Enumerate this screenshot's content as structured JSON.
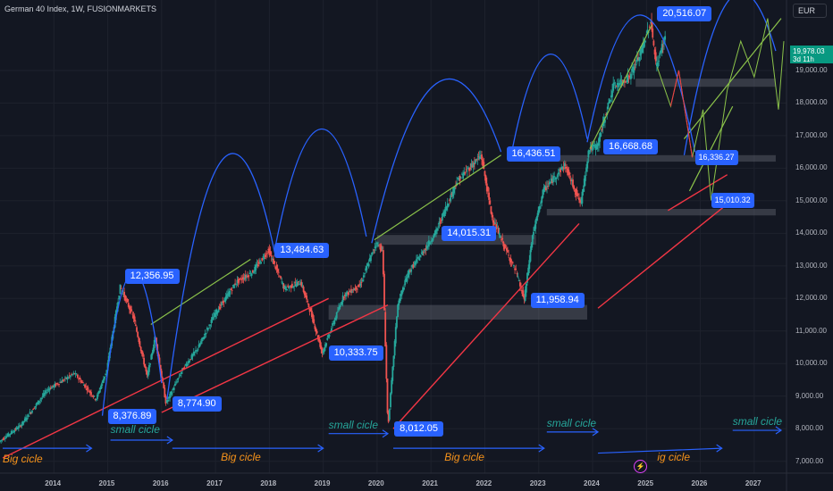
{
  "header": {
    "title": "German 40 Index, 1W, FUSIONMARKETS"
  },
  "currency_button": "EUR",
  "price_tag": {
    "price": "19,978.03",
    "countdown": "3d 11h",
    "color": "#089981"
  },
  "colors": {
    "background": "#131722",
    "up": "#26a69a",
    "down": "#ef5350",
    "arc": "#2962ff",
    "support_line": "#f23645",
    "trend_line": "#8bc34a",
    "zone": "#787b86"
  },
  "chart_data": {
    "type": "candlestick",
    "title": "German 40 Index, 1W, FUSIONMARKETS",
    "x_ticks": [
      "2014",
      "2015",
      "2016",
      "2017",
      "2018",
      "2019",
      "2020",
      "2021",
      "2022",
      "2023",
      "2024",
      "2025",
      "2026",
      "2027"
    ],
    "y_ticks": [
      "19,000.00",
      "18,000.00",
      "17,000.00",
      "16,000.00",
      "15,000.00",
      "14,000.00",
      "13,000.00",
      "12,000.00",
      "11,000.00",
      "10,000.00",
      "9,000.00",
      "8,000.00",
      "7,000.00"
    ],
    "ylim": [
      6800,
      21000
    ],
    "xlim": [
      2013.0,
      2027.6
    ],
    "price_path": [
      [
        2013.0,
        7600
      ],
      [
        2013.4,
        8100
      ],
      [
        2013.9,
        9200
      ],
      [
        2014.4,
        9700
      ],
      [
        2014.8,
        8900
      ],
      [
        2015.0,
        9800
      ],
      [
        2015.25,
        12356.95
      ],
      [
        2015.5,
        11400
      ],
      [
        2015.75,
        9600
      ],
      [
        2015.9,
        10800
      ],
      [
        2016.1,
        8774.9
      ],
      [
        2016.4,
        9800
      ],
      [
        2016.7,
        10500
      ],
      [
        2017.0,
        11500
      ],
      [
        2017.4,
        12500
      ],
      [
        2017.7,
        12800
      ],
      [
        2018.0,
        13484.63
      ],
      [
        2018.3,
        12300
      ],
      [
        2018.6,
        12500
      ],
      [
        2018.8,
        11500
      ],
      [
        2019.0,
        10333.75
      ],
      [
        2019.4,
        12100
      ],
      [
        2019.7,
        12400
      ],
      [
        2020.0,
        13700
      ],
      [
        2020.12,
        13500
      ],
      [
        2020.22,
        8012.05
      ],
      [
        2020.4,
        11800
      ],
      [
        2020.6,
        12800
      ],
      [
        2020.9,
        13500
      ],
      [
        2021.1,
        14015.31
      ],
      [
        2021.5,
        15600
      ],
      [
        2021.95,
        16400
      ],
      [
        2022.15,
        14500
      ],
      [
        2022.3,
        13900
      ],
      [
        2022.6,
        12800
      ],
      [
        2022.75,
        11958.94
      ],
      [
        2022.9,
        13900
      ],
      [
        2023.1,
        15300
      ],
      [
        2023.5,
        16100
      ],
      [
        2023.8,
        14900
      ],
      [
        2023.95,
        16600
      ],
      [
        2024.1,
        16668.68
      ],
      [
        2024.4,
        18500
      ],
      [
        2024.7,
        18800
      ],
      [
        2024.9,
        19500
      ],
      [
        2025.1,
        20516.07
      ],
      [
        2025.2,
        19100
      ],
      [
        2025.35,
        19978.03
      ]
    ],
    "labels": [
      {
        "text": "12,356.95",
        "x": 2015.25,
        "y": 12356.95
      },
      {
        "text": "8,376.89",
        "x": 2014.9,
        "y": 8376.89
      },
      {
        "text": "8,774.90",
        "x": 2016.1,
        "y": 8774.9
      },
      {
        "text": "13,484.63",
        "x": 2018.0,
        "y": 13484.63
      },
      {
        "text": "10,333.75",
        "x": 2019.0,
        "y": 10333.75
      },
      {
        "text": "8,012.05",
        "x": 2020.22,
        "y": 8012.05
      },
      {
        "text": "14,015.31",
        "x": 2021.1,
        "y": 14015.31
      },
      {
        "text": "16,436.51",
        "x": 2022.3,
        "y": 16436.51
      },
      {
        "text": "11,958.94",
        "x": 2022.75,
        "y": 11958.94
      },
      {
        "text": "16,668.68",
        "x": 2024.1,
        "y": 16668.68
      },
      {
        "text": "20,516.07",
        "x": 2025.1,
        "y": 20516.07
      },
      {
        "text": "16,336.27",
        "x": 2025.8,
        "y": 16336.27
      },
      {
        "text": "15,010.32",
        "x": 2026.1,
        "y": 15010.32
      }
    ],
    "zones": [
      {
        "x1": 2020.0,
        "x2": 2022.95,
        "y1": 13650,
        "y2": 13950
      },
      {
        "x1": 2019.1,
        "x2": 2023.9,
        "y1": 11350,
        "y2": 11800
      },
      {
        "x1": 2022.7,
        "x2": 2027.4,
        "y1": 16200,
        "y2": 16400
      },
      {
        "x1": 2023.15,
        "x2": 2027.4,
        "y1": 14550,
        "y2": 14750
      },
      {
        "x1": 2024.8,
        "x2": 2027.4,
        "y1": 18500,
        "y2": 18750
      }
    ],
    "support_lines": [
      {
        "x1": 2013.05,
        "y1": 7100,
        "x2": 2019.1,
        "y2": 12000
      },
      {
        "x1": 2016.0,
        "y1": 8500,
        "x2": 2020.2,
        "y2": 11800
      },
      {
        "x1": 2020.3,
        "y1": 8000,
        "x2": 2023.75,
        "y2": 14300
      },
      {
        "x1": 2024.1,
        "y1": 11700,
        "x2": 2026.5,
        "y2": 14900
      },
      {
        "x1": 2025.4,
        "y1": 14700,
        "x2": 2026.5,
        "y2": 15800
      }
    ],
    "arc_peaks": [
      {
        "x1": 2014.9,
        "y1": 8400,
        "x2": 2016.0,
        "y2": 9400,
        "peak": 12800
      },
      {
        "x1": 2016.1,
        "y1": 8900,
        "x2": 2018.1,
        "y2": 13400,
        "peak": 16200
      },
      {
        "x1": 2018.1,
        "y1": 13500,
        "x2": 2019.8,
        "y2": 13900,
        "peak": 17200
      },
      {
        "x1": 2019.9,
        "y1": 13700,
        "x2": 2022.3,
        "y2": 16500,
        "peak": 18600
      },
      {
        "x1": 2022.5,
        "y1": 16500,
        "x2": 2023.9,
        "y2": 16900,
        "peak": 19500
      },
      {
        "x1": 2023.9,
        "y1": 16800,
        "x2": 2025.9,
        "y2": 16500,
        "peak": 20700
      },
      {
        "x1": 2025.7,
        "y1": 16400,
        "x2": 2027.4,
        "y2": 19600,
        "peak": 21200
      }
    ],
    "cycles_big": [
      {
        "text": "Big cicle",
        "x": 2013.05,
        "y": 7050
      },
      {
        "text": "Big cicle",
        "x": 2017.1,
        "y": 7100
      },
      {
        "text": "Big cicle",
        "x": 2021.25,
        "y": 7100
      },
      {
        "text": "ig cicle",
        "x": 2025.2,
        "y": 7100
      }
    ],
    "cycles_small": [
      {
        "text": "small cicle",
        "x": 2015.05,
        "y": 7950
      },
      {
        "text": "small cicle",
        "x": 2019.1,
        "y": 8100
      },
      {
        "text": "small cicle",
        "x": 2023.15,
        "y": 8150
      },
      {
        "text": "small cicle",
        "x": 2026.6,
        "y": 8200
      }
    ]
  }
}
